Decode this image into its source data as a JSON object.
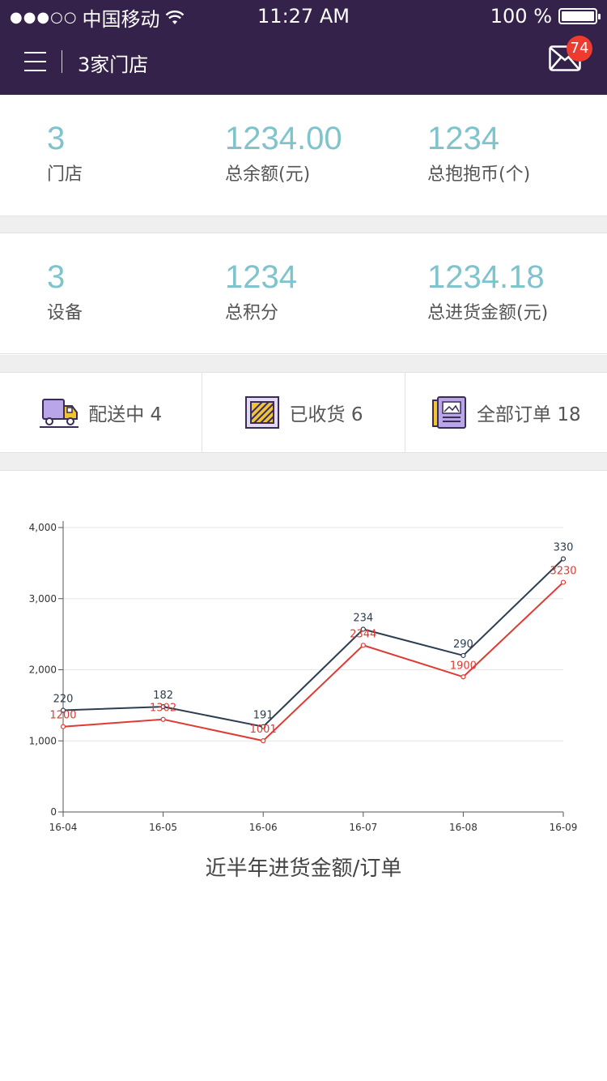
{
  "status_bar": {
    "signal": "●●●○○",
    "carrier": "中国移动",
    "time": "11:27 AM",
    "battery": "100 %",
    "battery_level": 1.0
  },
  "navbar": {
    "title": "3家门店",
    "mail_badge": "74",
    "menu_icon": "menu-icon",
    "mail_icon": "mail-icon"
  },
  "stats_row1": [
    {
      "value": "3",
      "label": "门店"
    },
    {
      "value": "1234.00",
      "label": "总余额(元)"
    },
    {
      "value": "1234",
      "label": "总抱抱币(个)"
    }
  ],
  "stats_row2": [
    {
      "value": "3",
      "label": "设备"
    },
    {
      "value": "1234",
      "label": "总积分"
    },
    {
      "value": "1234.18",
      "label": "总进货金额(元)"
    }
  ],
  "orders": [
    {
      "label": "配送中 4",
      "icon": "delivery-truck-icon"
    },
    {
      "label": "已收货 6",
      "icon": "received-box-icon"
    },
    {
      "label": "全部订单 18",
      "icon": "order-list-icon"
    }
  ],
  "colors": {
    "header_bg": "#35224a",
    "accent_value": "#7ec4cc",
    "series_dark": "#2c3e50",
    "series_red": "#dd3b33",
    "badge": "#ee3b30"
  },
  "chart_data": {
    "type": "line",
    "title": "近半年进货金额/订单",
    "xlabel": "",
    "ylabel": "",
    "x": [
      "16-04",
      "16-05",
      "16-06",
      "16-07",
      "16-08",
      "16-09"
    ],
    "ylim": [
      0,
      4000
    ],
    "yticks": [
      0,
      1000,
      2000,
      3000,
      4000
    ],
    "ytick_labels": [
      "0",
      "1,000",
      "2,000",
      "3,000",
      "4,000"
    ],
    "grid": true,
    "legend": "none",
    "series": [
      {
        "values": [
          1430,
          1480,
          1200,
          2570,
          2200,
          3560
        ],
        "labels": [
          "220",
          "182",
          "191",
          "234",
          "290",
          "330"
        ],
        "color": "#2c3e50"
      },
      {
        "values": [
          1200,
          1302,
          1001,
          2344,
          1900,
          3230
        ],
        "labels": [
          "1200",
          "1302",
          "1001",
          "2344",
          "1900",
          "3230"
        ],
        "color": "#dd3b33"
      }
    ]
  }
}
